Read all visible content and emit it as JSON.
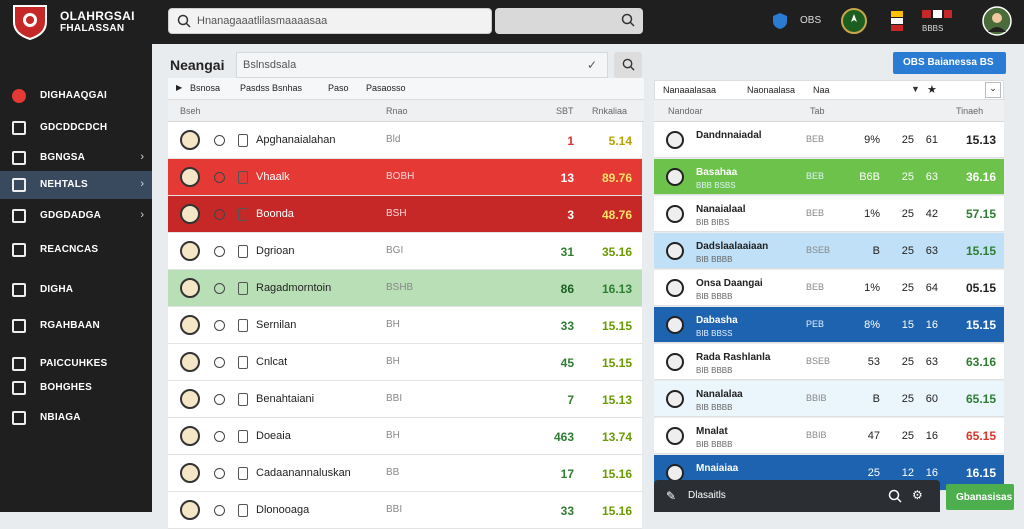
{
  "header": {
    "brand_line1": "OLAHRGSAI",
    "brand_line2": "FHALASSAN",
    "search_placeholder": "Hnanagaaatlilasmaaaasaa",
    "user_label": "OBS",
    "flag_label": "BBBS"
  },
  "sidebar": {
    "items": [
      {
        "label": "DIGHAAQGAI",
        "icon": "red-circle-icon"
      },
      {
        "label": "GDCDDCDCH",
        "icon": "book-icon"
      },
      {
        "label": "BGNGSA",
        "icon": "thumbs-up-icon"
      },
      {
        "label": "NEHTALS",
        "icon": "card-icon",
        "active": true
      },
      {
        "label": "GDGDADGA",
        "icon": "tool-icon"
      },
      {
        "label": "REACNCAS",
        "icon": "grid-icon"
      },
      {
        "label": "DIGHA",
        "icon": "bird-icon"
      },
      {
        "label": "RGAHBAAN",
        "icon": "chart-icon"
      },
      {
        "label": "PAICCUHKES",
        "icon": "list-icon"
      },
      {
        "label": "BOHGHES",
        "icon": "arrows-icon"
      },
      {
        "label": "NBIAGA",
        "icon": "flag-icon"
      }
    ]
  },
  "left": {
    "title": "Neangai",
    "input_text": "Bslnsdsala",
    "filters": [
      "Bsnosa",
      "Pasdss Bsnhas",
      "Paso",
      "Pasaosso"
    ],
    "headers": [
      "Bseh",
      "Rnao",
      "SBT",
      "Rnkaliaa"
    ],
    "rows": [
      {
        "name": "Apghanaialahan",
        "code": "Bld",
        "num": "1",
        "odds": "5.14",
        "num_color": "#d9342b",
        "odds_color": "#b8a100",
        "bg": "#ffffff"
      },
      {
        "name": "Vhaalk",
        "code": "BOBH",
        "num": "13",
        "odds": "89.76",
        "num_color": "#ffffff",
        "odds_color": "#ffe16b",
        "bg": "#e53935"
      },
      {
        "name": "Boonda",
        "code": "BSH",
        "num": "3",
        "odds": "48.76",
        "num_color": "#ffffff",
        "odds_color": "#ffe16b",
        "bg": "#c62828"
      },
      {
        "name": "Dgrioan",
        "code": "BGI",
        "num": "31",
        "odds": "35.16",
        "num_color": "#2e7d32",
        "odds_color": "#6a9a00",
        "bg": "#ffffff"
      },
      {
        "name": "Ragadmorntoin",
        "code": "BSHB",
        "num": "86",
        "odds": "16.13",
        "num_color": "#1b5e20",
        "odds_color": "#2e7d32",
        "bg": "#b9dfb6"
      },
      {
        "name": "Sernilan",
        "code": "BH",
        "num": "33",
        "odds": "15.15",
        "num_color": "#2e7d32",
        "odds_color": "#6a9a00",
        "bg": "#ffffff"
      },
      {
        "name": "Cnlcat",
        "code": "BH",
        "num": "45",
        "odds": "15.15",
        "num_color": "#2e7d32",
        "odds_color": "#6a9a00",
        "bg": "#ffffff"
      },
      {
        "name": "Benahtaiani",
        "code": "BBI",
        "num": "7",
        "odds": "15.13",
        "num_color": "#2e7d32",
        "odds_color": "#6a9a00",
        "bg": "#ffffff"
      },
      {
        "name": "Doeaia",
        "code": "BH",
        "num": "463",
        "odds": "13.74",
        "num_color": "#2e7d32",
        "odds_color": "#6a9a00",
        "bg": "#ffffff"
      },
      {
        "name": "Cadaanannaluskan",
        "code": "BB",
        "num": "17",
        "odds": "15.16",
        "num_color": "#2e7d32",
        "odds_color": "#6a9a00",
        "bg": "#ffffff"
      },
      {
        "name": "Dlonooaga",
        "code": "BBI",
        "num": "33",
        "odds": "15.16",
        "num_color": "#2e7d32",
        "odds_color": "#6a9a00",
        "bg": "#ffffff"
      }
    ]
  },
  "right": {
    "button_label": "OBS   Baianessa   BS",
    "filters": [
      "Nanaaalasaa",
      "Naonaalasa",
      "Naa"
    ],
    "headers": [
      "Nandoar",
      "Tab",
      "Tinaeh"
    ],
    "rows": [
      {
        "name": "Dandnnaiadal",
        "sub": "",
        "code": "BEB",
        "c1": "9%",
        "c2": "25",
        "c3": "61",
        "c4": "15.13",
        "bg": "#ffffff",
        "text": "#222",
        "c4_color": "#222"
      },
      {
        "name": "Basahaa",
        "sub": "BBB BSBS",
        "code": "BEB",
        "c1": "B6B",
        "c2": "25",
        "c3": "63",
        "c4": "36.16",
        "bg": "#6cc24a",
        "text": "#ffffff",
        "c4_color": "#ffffff"
      },
      {
        "name": "Nanaialaal",
        "sub": "BIB BIBS",
        "code": "BEB",
        "c1": "1%",
        "c2": "25",
        "c3": "42",
        "c4": "57.15",
        "bg": "#ffffff",
        "text": "#222",
        "c4_color": "#2e7d32"
      },
      {
        "name": "Dadslaalaaiaan",
        "sub": "BIB BBBB",
        "code": "BSEB",
        "c1": "B",
        "c2": "25",
        "c3": "63",
        "c4": "15.15",
        "bg": "#bfe0f7",
        "text": "#222",
        "c4_color": "#2e7d32"
      },
      {
        "name": "Onsa Daangai",
        "sub": "BIB BBBB",
        "code": "BEB",
        "c1": "1%",
        "c2": "25",
        "c3": "64",
        "c4": "05.15",
        "bg": "#ffffff",
        "text": "#222",
        "c4_color": "#222"
      },
      {
        "name": "Dabasha",
        "sub": "BIB BBSS",
        "code": "PEB",
        "c1": "8%",
        "c2": "15",
        "c3": "16",
        "c4": "15.15",
        "bg": "#1e63b0",
        "text": "#ffffff",
        "c4_color": "#ffffff"
      },
      {
        "name": "Rada Rashlanla",
        "sub": "BIB BBBB",
        "code": "BSEB",
        "c1": "53",
        "c2": "25",
        "c3": "63",
        "c4": "63.16",
        "bg": "#ffffff",
        "text": "#222",
        "c4_color": "#2e7d32"
      },
      {
        "name": "Nanalalaa",
        "sub": "BIB BBBB",
        "code": "BBIB",
        "c1": "B",
        "c2": "25",
        "c3": "60",
        "c4": "65.15",
        "bg": "#eaf5fc",
        "text": "#222",
        "c4_color": "#2e7d32"
      },
      {
        "name": "Mnalat",
        "sub": "BIB BBBB",
        "code": "BBIB",
        "c1": "47",
        "c2": "25",
        "c3": "16",
        "c4": "65.15",
        "bg": "#ffffff",
        "text": "#222",
        "c4_color": "#d9342b"
      },
      {
        "name": "Mnaiaiaa",
        "sub": "",
        "code": "",
        "c1": "25",
        "c2": "12",
        "c3": "16",
        "c4": "16.15",
        "bg": "#1e63b0",
        "text": "#ffffff",
        "c4_color": "#ffffff"
      }
    ],
    "bottom_label": "Dlasaitls",
    "bottom_button": "Gbanasisas"
  }
}
